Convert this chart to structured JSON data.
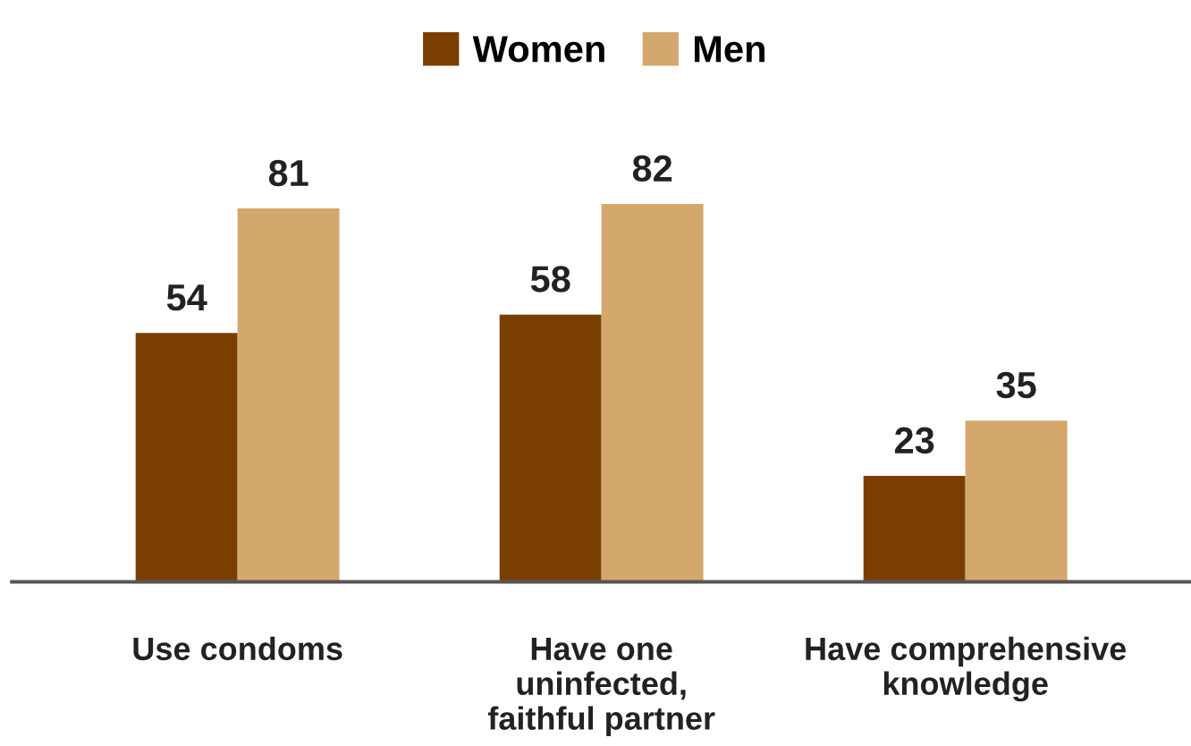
{
  "chart_data": {
    "type": "bar",
    "categories": [
      "Use condoms",
      "Have one\nuninfected,\nfaithful partner",
      "Have comprehensive\nknowledge"
    ],
    "series": [
      {
        "name": "Women",
        "color": "#7a3f00",
        "values": [
          54,
          58,
          23
        ]
      },
      {
        "name": "Men",
        "color": "#d4a76d",
        "values": [
          81,
          82,
          35
        ]
      }
    ],
    "tick_labels": "x",
    "data_labels": true,
    "legend": "top",
    "grid": false
  }
}
